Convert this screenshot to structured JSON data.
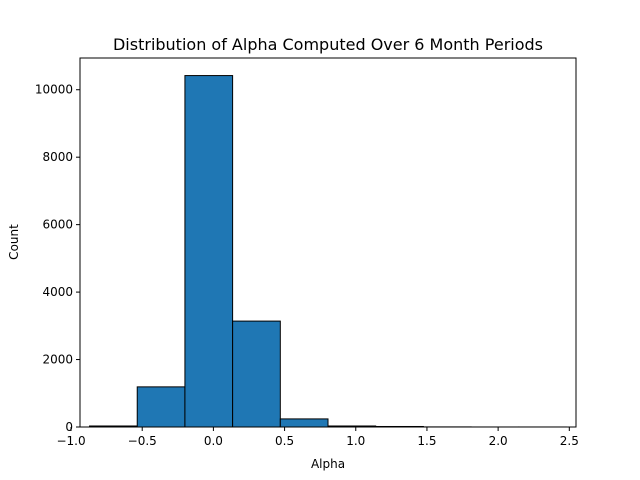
{
  "chart_data": {
    "type": "bar",
    "title": "Distribution of Alpha Computed Over 6 Month Periods",
    "xlabel": "Alpha",
    "ylabel": "Count",
    "bins": [
      {
        "start": -0.87,
        "end": -0.535,
        "count": 30
      },
      {
        "start": -0.535,
        "end": -0.2,
        "count": 1190
      },
      {
        "start": -0.2,
        "end": 0.135,
        "count": 10420
      },
      {
        "start": 0.135,
        "end": 0.47,
        "count": 3140
      },
      {
        "start": 0.47,
        "end": 0.805,
        "count": 240
      },
      {
        "start": 0.805,
        "end": 1.14,
        "count": 30
      },
      {
        "start": 1.14,
        "end": 1.475,
        "count": 15
      },
      {
        "start": 1.475,
        "end": 1.81,
        "count": 3
      },
      {
        "start": 1.81,
        "end": 2.145,
        "count": 1
      },
      {
        "start": 2.145,
        "end": 2.48,
        "count": 1
      }
    ],
    "xlim": [
      -0.937,
      2.547
    ],
    "ylim": [
      0,
      10941
    ],
    "xticks": [
      -1.0,
      -0.5,
      0.0,
      0.5,
      1.0,
      1.5,
      2.0,
      2.5
    ],
    "xtick_labels": [
      "−1.0",
      "−0.5",
      "0.0",
      "0.5",
      "1.0",
      "1.5",
      "2.0",
      "2.5"
    ],
    "yticks": [
      0,
      2000,
      4000,
      6000,
      8000,
      10000
    ],
    "ytick_labels": [
      "0",
      "2000",
      "4000",
      "6000",
      "8000",
      "10000"
    ],
    "grid": false,
    "colors": {
      "bar_fill": "#1f77b4",
      "bar_edge": "#000000"
    }
  }
}
